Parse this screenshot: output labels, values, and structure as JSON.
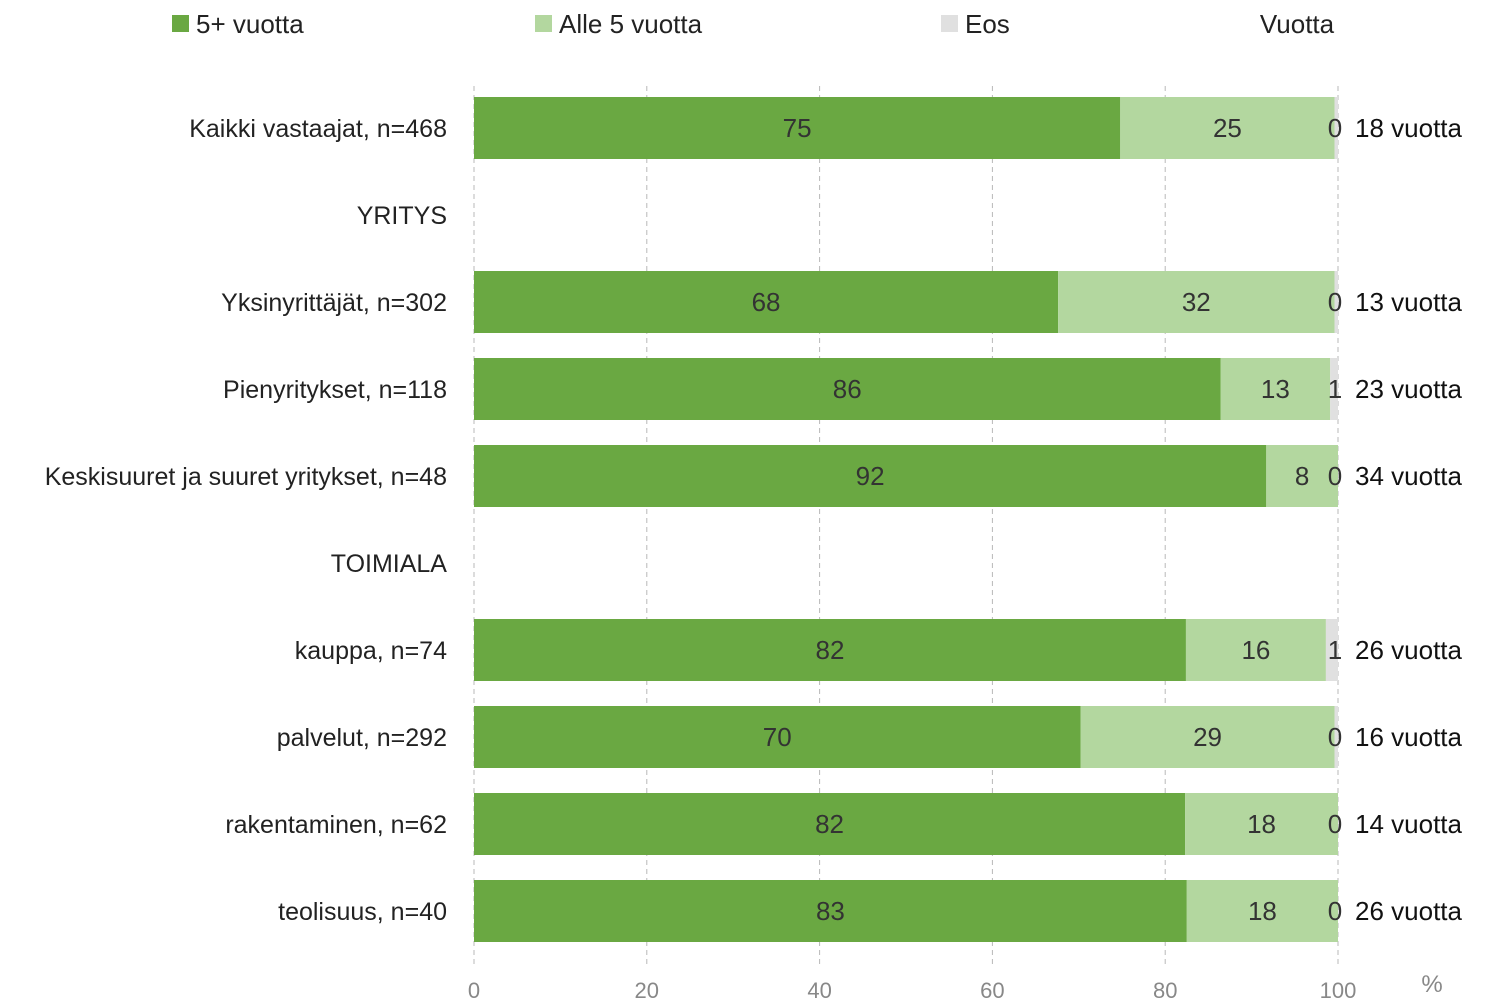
{
  "legend": {
    "items": [
      {
        "label": "5+ vuotta",
        "color": "#6aa842"
      },
      {
        "label": "Alle 5 vuotta",
        "color": "#b3d79f"
      },
      {
        "label": "Eos",
        "color": "#e0e0e0"
      }
    ],
    "extra_header": "Vuotta"
  },
  "axis": {
    "unit_label": "%"
  },
  "chart_data": {
    "type": "bar",
    "orientation": "horizontal",
    "stacked": true,
    "categories": [
      "Kaikki vastaajat, n=468",
      "YRITYS",
      "Yksinyrittäjät, n=302",
      "Pienyritykset, n=118",
      "Keskisuuret ja suuret yritykset, n=48",
      "TOIMIALA",
      "kauppa, n=74",
      "palvelut, n=292",
      "rakentaminen, n=62",
      "teolisuus, n=40"
    ],
    "series": [
      {
        "name": "5+ vuotta",
        "color": "#6aa842",
        "values": [
          75,
          null,
          68,
          86,
          92,
          null,
          82,
          70,
          82,
          83
        ],
        "precise": [
          74.8,
          null,
          67.6,
          86.4,
          91.7,
          null,
          82.4,
          70.2,
          82.3,
          82.5
        ]
      },
      {
        "name": "Alle 5 vuotta",
        "color": "#b3d79f",
        "values": [
          25,
          null,
          32,
          13,
          8,
          null,
          16,
          29,
          18,
          18
        ],
        "precise": [
          24.8,
          null,
          32.0,
          12.7,
          8.3,
          null,
          16.2,
          29.4,
          17.7,
          17.5
        ]
      },
      {
        "name": "Eos",
        "color": "#e0e0e0",
        "values": [
          0,
          null,
          0,
          1,
          0,
          null,
          1,
          0,
          0,
          0
        ],
        "precise": [
          0.4,
          null,
          0.4,
          0.9,
          0.0,
          null,
          1.4,
          0.4,
          0.0,
          0.0
        ]
      }
    ],
    "years": [
      "18 vuotta",
      "",
      "13 vuotta",
      "23 vuotta",
      "34 vuotta",
      "",
      "26 vuotta",
      "16 vuotta",
      "14 vuotta",
      "26 vuotta"
    ],
    "xlim": [
      0,
      100
    ],
    "xticks": [
      0,
      20,
      40,
      60,
      80,
      100
    ],
    "grid": true
  }
}
